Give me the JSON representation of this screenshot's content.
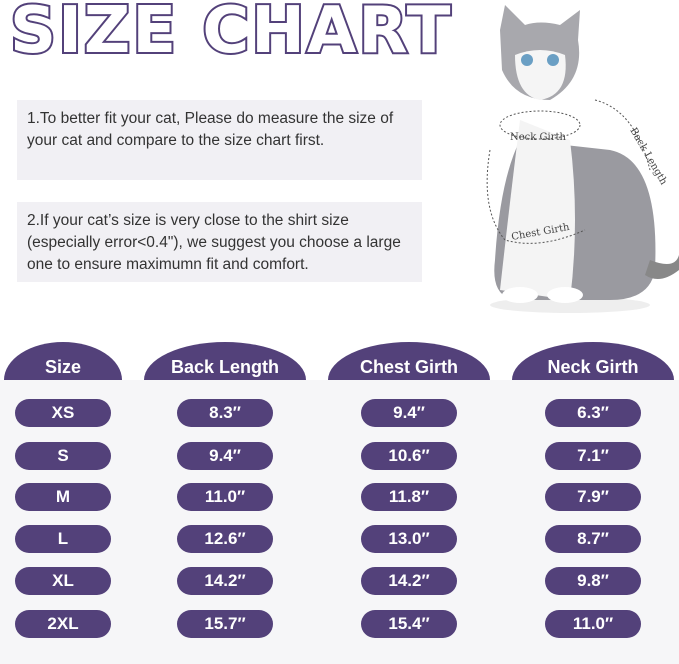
{
  "title": "SIZE CHART",
  "notes": [
    "1.To better fit your cat, Please do measure the size of your cat and compare to the size chart first.",
    "2.If your cat’s size is very close to the shirt size (especially error<0.4\"), we suggest you choose a large one to ensure maximumn fit and comfort."
  ],
  "diagram_labels": {
    "neck": "Neck Girth",
    "chest": "Chest Girth",
    "back": "Back Length"
  },
  "colors": {
    "accent": "#53417a"
  },
  "table": {
    "headers": [
      "Size",
      "Back Length",
      "Chest Girth",
      "Neck Girth"
    ],
    "rows": [
      [
        "XS",
        "8.3″",
        "9.4″",
        "6.3″"
      ],
      [
        "S",
        "9.4″",
        "10.6″",
        "7.1″"
      ],
      [
        "M",
        "11.0″",
        "11.8″",
        "7.9″"
      ],
      [
        "L",
        "12.6″",
        "13.0″",
        "8.7″"
      ],
      [
        "XL",
        "14.2″",
        "14.2″",
        "9.8″"
      ],
      [
        "2XL",
        "15.7″",
        "15.4″",
        "11.0″"
      ]
    ]
  }
}
